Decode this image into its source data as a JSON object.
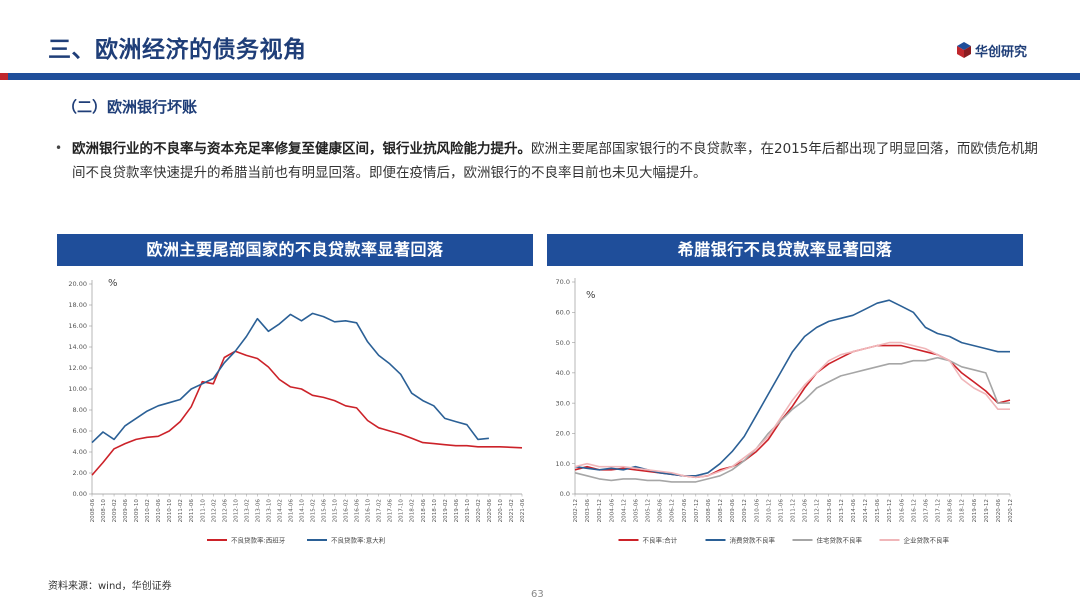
{
  "page": {
    "title": "三、欧洲经济的债务视角",
    "logo_text": "华创研究",
    "section": "（二）欧洲银行坏账",
    "bullet_bold": "欧洲银行业的不良率与资本充足率修复至健康区间，银行业抗风险能力提升。",
    "bullet_text": "欧洲主要尾部国家银行的不良贷款率，在2015年后都出现了明显回落，而欧债危机期间不良贷款率快速提升的希腊当前也有明显回落。即便在疫情后，欧洲银行的不良率目前也未见大幅提升。",
    "source": "资料来源：wind，华创证券",
    "page_number": "63"
  },
  "colors": {
    "brand_blue": "#1f4e9a",
    "title_blue": "#1f3e78",
    "red": "#c0272d",
    "line_red": "#cc2229",
    "line_blue": "#2b6096",
    "line_gray": "#a6a6a6",
    "line_pink": "#f0b6b9"
  },
  "chart_data": [
    {
      "type": "line",
      "title": "欧洲主要尾部国家的不良贷款率显著回落",
      "unit": "%",
      "ylim": [
        0,
        20
      ],
      "yticks": [
        "0.00",
        "2.00",
        "4.00",
        "6.00",
        "8.00",
        "10.00",
        "12.00",
        "14.00",
        "16.00",
        "18.00",
        "20.00"
      ],
      "x": [
        "2008-06",
        "2008-10",
        "2009-02",
        "2009-06",
        "2009-10",
        "2010-02",
        "2010-06",
        "2010-10",
        "2011-02",
        "2011-06",
        "2011-10",
        "2012-02",
        "2012-06",
        "2012-10",
        "2013-02",
        "2013-06",
        "2013-10",
        "2014-02",
        "2014-06",
        "2014-10",
        "2015-02",
        "2015-06",
        "2015-10",
        "2016-02",
        "2016-06",
        "2016-10",
        "2017-02",
        "2017-06",
        "2017-10",
        "2018-02",
        "2018-06",
        "2018-10",
        "2019-02",
        "2019-06",
        "2019-10",
        "2020-02",
        "2020-06",
        "2020-10",
        "2021-02",
        "2021-06"
      ],
      "series": [
        {
          "name": "不良贷款率:西班牙",
          "color": "#cc2229",
          "values": [
            1.8,
            3.0,
            4.3,
            4.8,
            5.2,
            5.4,
            5.5,
            6.0,
            6.9,
            8.3,
            10.7,
            10.5,
            13.0,
            13.6,
            13.2,
            12.9,
            12.1,
            10.9,
            10.2,
            10.0,
            9.4,
            9.2,
            8.9,
            8.4,
            8.2,
            7.0,
            6.3,
            6.0,
            5.7,
            5.3,
            4.9,
            4.8,
            4.7,
            4.6,
            4.6,
            4.5,
            4.5,
            4.5,
            4.45,
            4.4
          ]
        },
        {
          "name": "不良贷款率:意大利",
          "color": "#2b6096",
          "values": [
            4.9,
            5.9,
            5.2,
            6.5,
            7.2,
            7.9,
            8.4,
            8.7,
            9.0,
            10.0,
            10.5,
            11.0,
            12.5,
            13.6,
            15.0,
            16.7,
            15.5,
            16.2,
            17.1,
            16.5,
            17.2,
            16.9,
            16.4,
            16.5,
            16.3,
            14.5,
            13.2,
            12.4,
            11.4,
            9.6,
            8.9,
            8.4,
            7.2,
            6.9,
            6.6,
            5.2,
            5.3,
            null,
            null,
            null
          ]
        }
      ]
    },
    {
      "type": "line",
      "title": "希腊银行不良贷款率显著回落",
      "unit": "%",
      "ylim": [
        0,
        70
      ],
      "yticks": [
        "0.0",
        "10.0",
        "20.0",
        "30.0",
        "40.0",
        "50.0",
        "60.0",
        "70.0"
      ],
      "x": [
        "2002-12",
        "2003-06",
        "2003-12",
        "2004-06",
        "2004-12",
        "2005-06",
        "2005-12",
        "2006-06",
        "2006-12",
        "2007-06",
        "2007-12",
        "2008-06",
        "2008-12",
        "2009-06",
        "2009-12",
        "2010-06",
        "2010-12",
        "2011-06",
        "2011-12",
        "2012-06",
        "2012-12",
        "2013-06",
        "2013-12",
        "2014-06",
        "2014-12",
        "2015-06",
        "2015-12",
        "2016-06",
        "2016-12",
        "2017-06",
        "2017-12",
        "2018-06",
        "2018-12",
        "2019-06",
        "2019-12",
        "2020-06",
        "2020-12"
      ],
      "series": [
        {
          "name": "不良率:合计",
          "color": "#cc2229",
          "values": [
            8,
            9,
            8,
            8,
            8.5,
            8,
            7.5,
            7,
            6.5,
            6,
            5.5,
            6,
            8,
            9,
            11,
            14,
            18,
            24,
            29,
            35,
            40,
            43,
            45,
            47,
            48,
            49,
            49,
            49,
            48,
            47,
            46,
            44,
            40,
            37,
            34,
            30,
            31
          ]
        },
        {
          "name": "消费贷款不良率",
          "color": "#2b6096",
          "values": [
            9,
            8.5,
            8,
            8.5,
            8,
            9,
            8,
            7,
            6.5,
            6,
            6,
            7,
            10,
            14,
            19,
            26,
            33,
            40,
            47,
            52,
            55,
            57,
            58,
            59,
            61,
            63,
            64,
            62,
            60,
            55,
            53,
            52,
            50,
            49,
            48,
            47,
            47
          ]
        },
        {
          "name": "住宅贷款不良率",
          "color": "#a6a6a6",
          "values": [
            7,
            6,
            5,
            4.5,
            5,
            5,
            4.5,
            4.5,
            4,
            4,
            4,
            5,
            6,
            8,
            11,
            15,
            20,
            24,
            28,
            31,
            35,
            37,
            39,
            40,
            41,
            42,
            43,
            43,
            44,
            44,
            45,
            44,
            42,
            41,
            40,
            30,
            30
          ]
        },
        {
          "name": "企业贷款不良率",
          "color": "#f0b6b9",
          "values": [
            9,
            10,
            9,
            9,
            9,
            8.5,
            8,
            7.5,
            7,
            6,
            5.5,
            6,
            7.5,
            9,
            12,
            15,
            19,
            25,
            31,
            36,
            40,
            44,
            46,
            47,
            48,
            49,
            50,
            50,
            49,
            48,
            46,
            44,
            38,
            35,
            33,
            28,
            28
          ]
        }
      ]
    }
  ]
}
